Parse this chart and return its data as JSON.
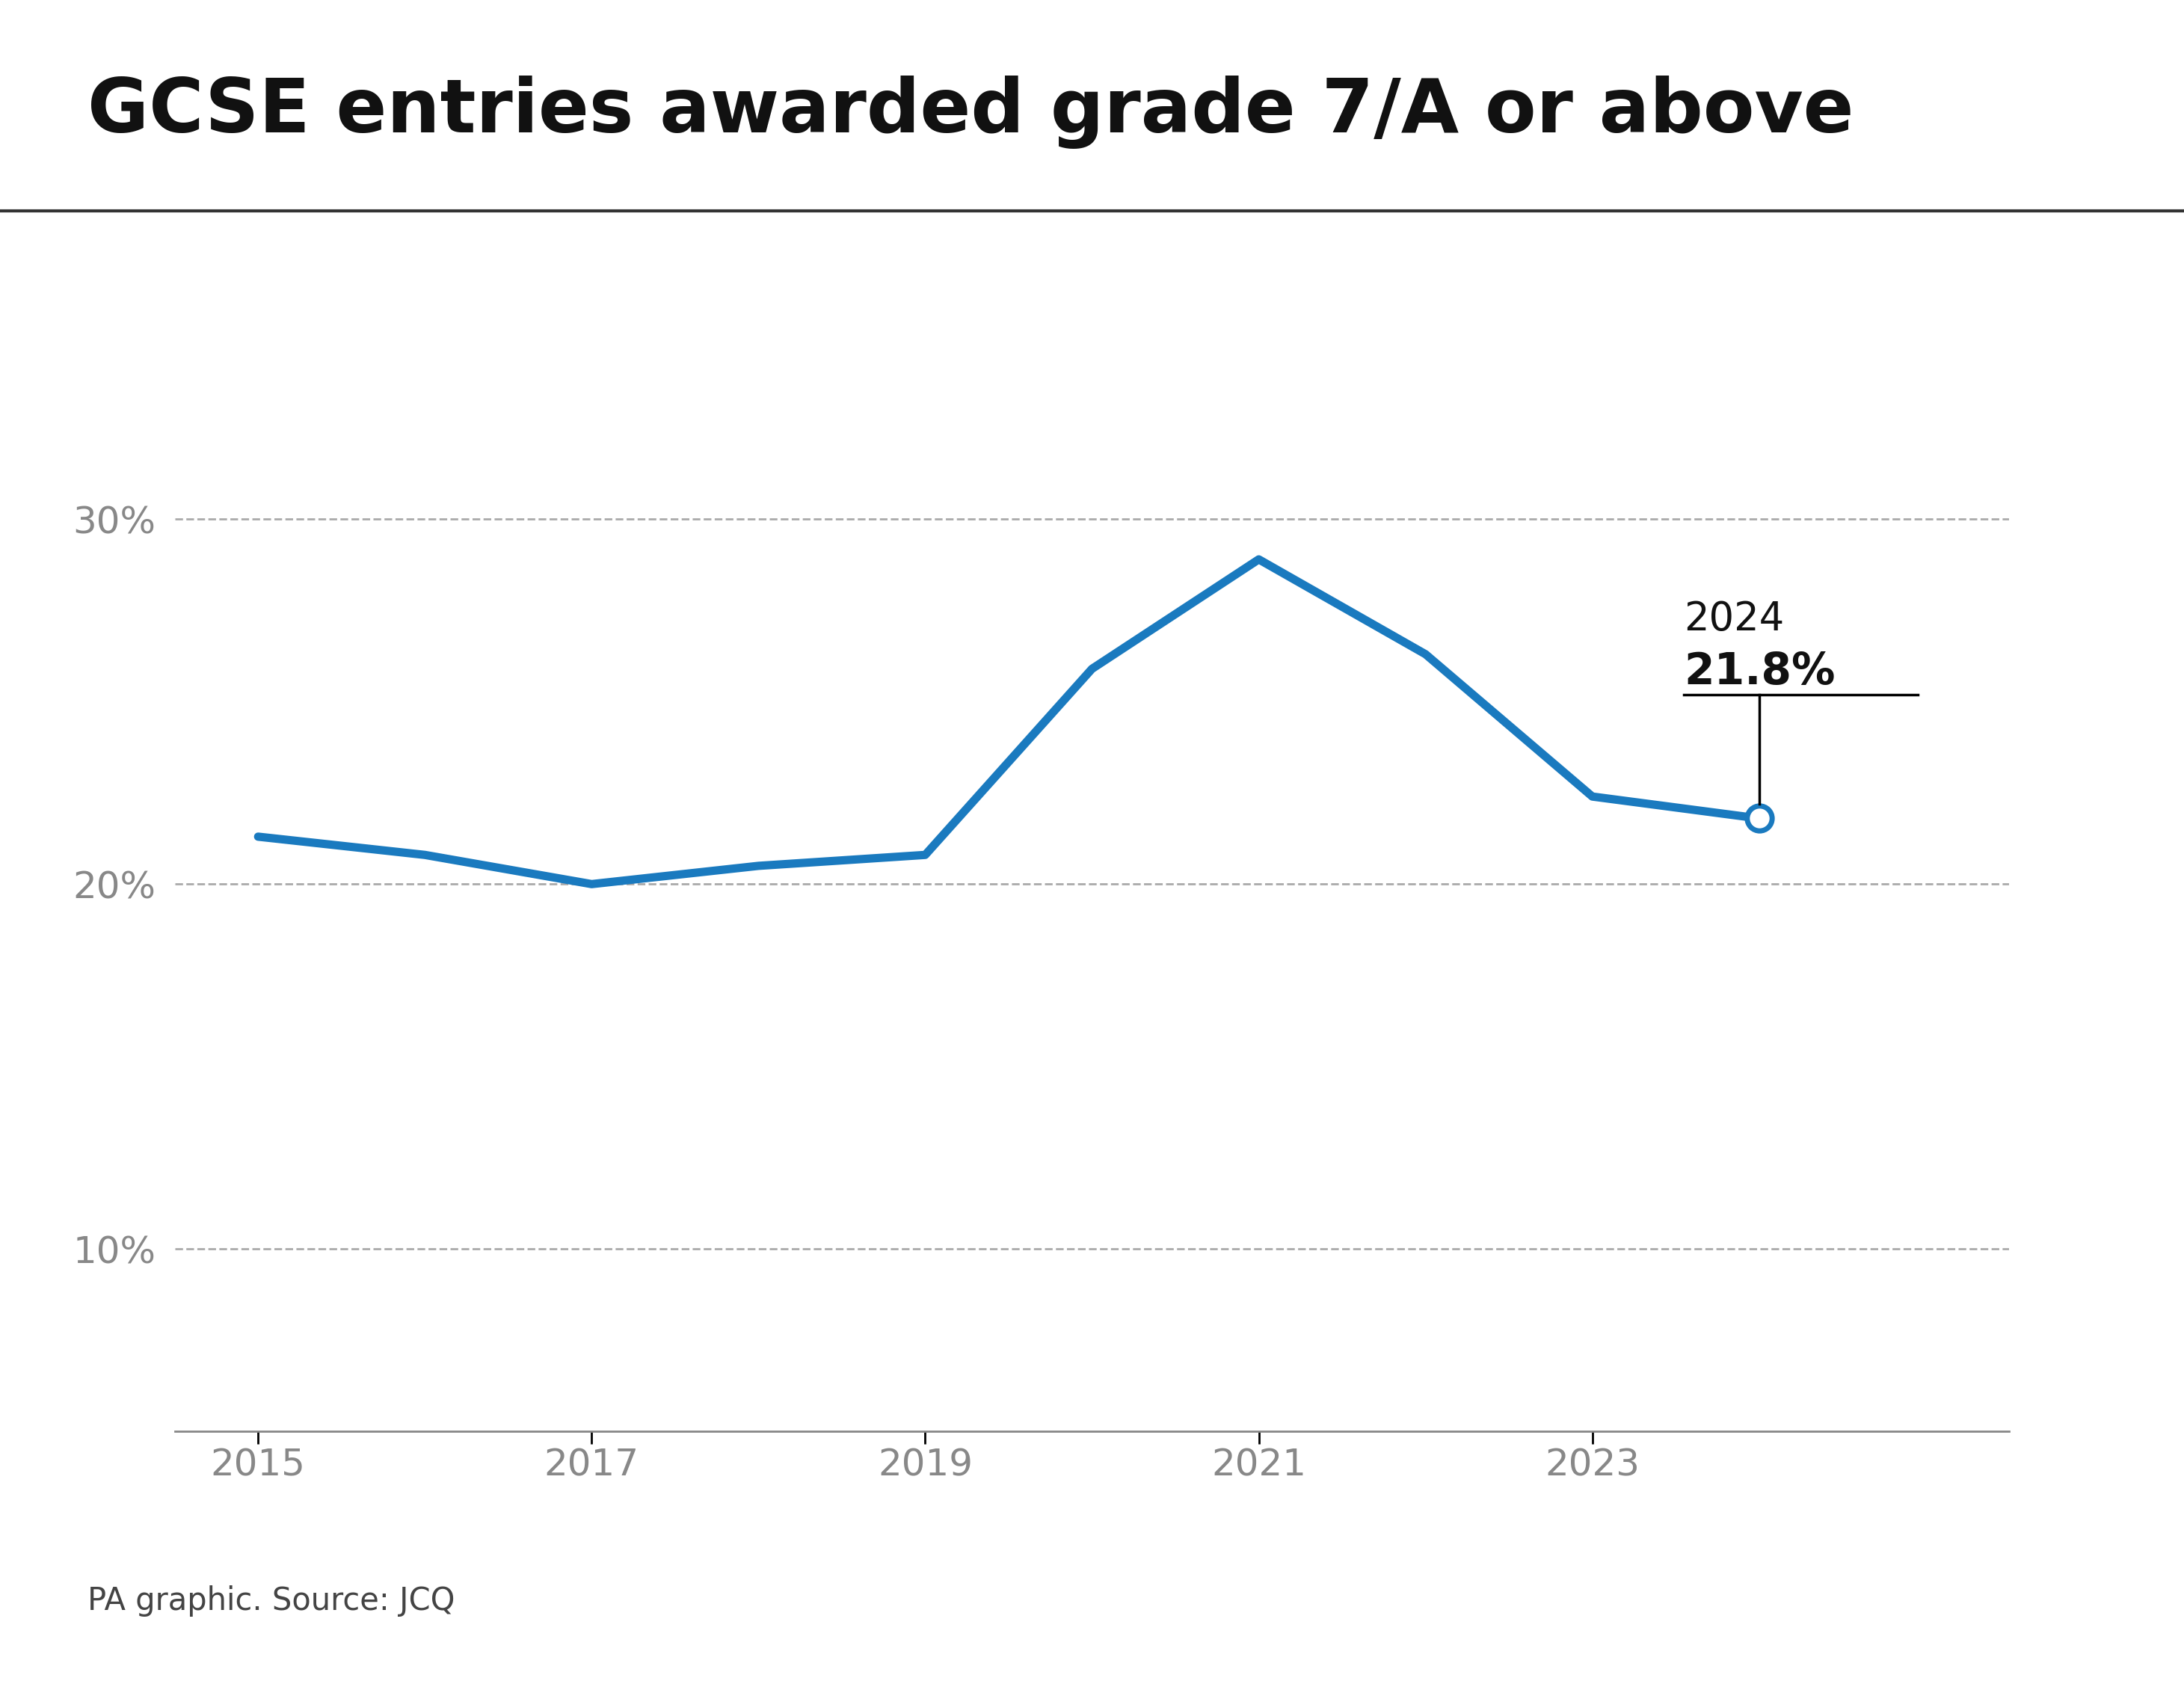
{
  "title": "GCSE entries awarded grade 7/A or above",
  "years": [
    2015,
    2016,
    2017,
    2018,
    2019,
    2020,
    2021,
    2022,
    2023,
    2024
  ],
  "values": [
    21.3,
    20.8,
    20.0,
    20.5,
    20.8,
    25.9,
    28.9,
    26.3,
    22.4,
    21.8
  ],
  "line_color": "#1a7abf",
  "line_width": 8,
  "yticks": [
    10,
    20,
    30
  ],
  "ylim": [
    5,
    35
  ],
  "xlim": [
    2014.5,
    2025.5
  ],
  "annotation_year": "2024",
  "annotation_value": "21.8%",
  "source_text": "PA graphic. Source: JCQ",
  "title_fontsize": 72,
  "tick_fontsize": 36,
  "annotation_year_fontsize": 38,
  "annotation_value_fontsize": 42,
  "source_fontsize": 30,
  "background_color": "#ffffff",
  "grid_color": "#aaaaaa",
  "tick_color": "#888888",
  "title_line_color": "#333333",
  "xticks": [
    2015,
    2017,
    2019,
    2021,
    2023
  ]
}
